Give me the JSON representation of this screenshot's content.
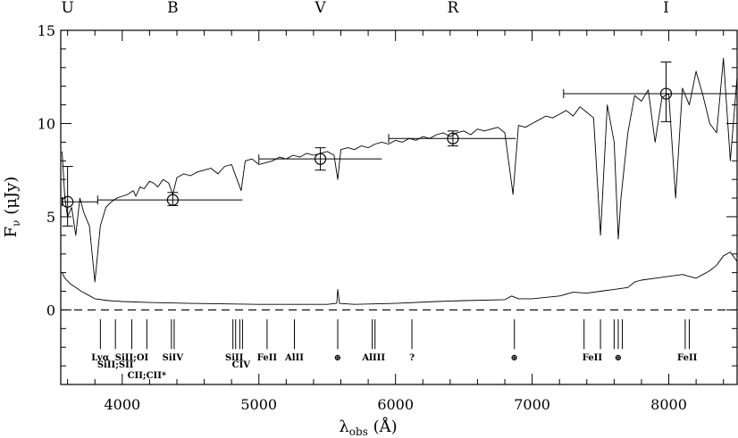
{
  "chart_data": {
    "type": "line",
    "title": "",
    "xlabel": "λobs (Å)",
    "xlabel_main": "λ",
    "xlabel_sub": "obs",
    "xlabel_unit": " (Å)",
    "ylabel": "Fν (μJy)",
    "ylabel_main": "F",
    "ylabel_sub": "ν",
    "ylabel_unit": " (μJy)",
    "xlim": [
      3550,
      8500
    ],
    "ylim": [
      -4,
      15
    ],
    "x_ticks": [
      4000,
      5000,
      6000,
      7000,
      8000
    ],
    "y_ticks": [
      0,
      5,
      10,
      15
    ],
    "grid": false,
    "zero_line": {
      "y": 0,
      "style": "dashed"
    },
    "filter_bands": [
      {
        "label": "U",
        "x": 3600
      },
      {
        "label": "B",
        "x": 4370
      },
      {
        "label": "V",
        "x": 5450
      },
      {
        "label": "R",
        "x": 6420
      },
      {
        "label": "I",
        "x": 7980
      }
    ],
    "series": [
      {
        "kind": "spectrum",
        "x": [
          3560,
          3580,
          3600,
          3630,
          3660,
          3690,
          3720,
          3760,
          3800,
          3840,
          3880,
          3920,
          3960,
          4000,
          4040,
          4080,
          4100,
          4130,
          4160,
          4200,
          4230,
          4260,
          4300,
          4340,
          4370,
          4400,
          4450,
          4500,
          4550,
          4600,
          4650,
          4700,
          4750,
          4800,
          4840,
          4870,
          4900,
          4950,
          5000,
          5050,
          5100,
          5150,
          5200,
          5250,
          5300,
          5350,
          5400,
          5450,
          5500,
          5550,
          5577,
          5600,
          5650,
          5700,
          5750,
          5800,
          5850,
          5900,
          5950,
          6000,
          6050,
          6100,
          6150,
          6200,
          6250,
          6300,
          6350,
          6400,
          6450,
          6500,
          6550,
          6600,
          6650,
          6700,
          6750,
          6800,
          6860,
          6900,
          6950,
          7000,
          7050,
          7100,
          7150,
          7200,
          7250,
          7300,
          7350,
          7400,
          7450,
          7500,
          7550,
          7600,
          7630,
          7650,
          7700,
          7750,
          7800,
          7850,
          7900,
          7950,
          8000,
          8050,
          8100,
          8150,
          8200,
          8250,
          8300,
          8350,
          8400,
          8450,
          8500
        ],
        "y": [
          8.5,
          6.0,
          5.0,
          5.5,
          4.0,
          6.0,
          5.2,
          4.5,
          1.5,
          4.5,
          5.5,
          5.8,
          6.0,
          6.1,
          6.2,
          6.4,
          6.1,
          6.6,
          6.5,
          6.9,
          6.8,
          6.6,
          7.0,
          6.8,
          6.2,
          7.1,
          7.3,
          7.2,
          7.4,
          7.5,
          7.6,
          7.3,
          7.7,
          7.8,
          7.0,
          6.4,
          8.0,
          8.1,
          7.8,
          7.9,
          8.0,
          8.2,
          8.1,
          8.3,
          8.2,
          8.4,
          8.3,
          8.4,
          8.5,
          8.3,
          7.0,
          8.6,
          8.7,
          8.6,
          8.8,
          8.7,
          8.9,
          9.0,
          8.9,
          9.1,
          9.0,
          9.2,
          9.1,
          9.3,
          9.2,
          9.4,
          9.5,
          9.3,
          9.5,
          9.6,
          9.4,
          9.7,
          9.6,
          9.7,
          9.8,
          9.5,
          6.2,
          9.9,
          9.8,
          10.0,
          10.2,
          10.4,
          10.3,
          10.5,
          10.7,
          10.4,
          10.9,
          10.6,
          10.3,
          4.0,
          11.0,
          9.0,
          3.8,
          6.0,
          9.5,
          11.5,
          11.2,
          11.8,
          9.0,
          11.4,
          11.6,
          6.0,
          11.9,
          11.0,
          12.8,
          11.5,
          10.0,
          9.5,
          13.5,
          8.0,
          12.5
        ]
      },
      {
        "kind": "error_spectrum",
        "x": [
          3560,
          3580,
          3620,
          3660,
          3700,
          3750,
          3800,
          3900,
          4000,
          4200,
          4500,
          5000,
          5500,
          5570,
          5577,
          5590,
          5700,
          6000,
          6300,
          6500,
          6800,
          6850,
          6900,
          7000,
          7200,
          7300,
          7400,
          7500,
          7600,
          7700,
          7750,
          7800,
          7900,
          8000,
          8100,
          8200,
          8250,
          8300,
          8350,
          8400,
          8450,
          8500
        ],
        "y": [
          2.0,
          1.7,
          1.4,
          1.2,
          1.0,
          0.8,
          0.6,
          0.5,
          0.45,
          0.4,
          0.35,
          0.3,
          0.3,
          0.35,
          1.1,
          0.35,
          0.3,
          0.35,
          0.45,
          0.5,
          0.55,
          0.75,
          0.6,
          0.6,
          0.75,
          0.95,
          0.9,
          1.0,
          1.1,
          1.2,
          1.5,
          1.6,
          1.7,
          1.8,
          1.9,
          1.7,
          1.9,
          2.1,
          2.4,
          2.9,
          3.1,
          2.6
        ]
      },
      {
        "kind": "photometry",
        "points": [
          {
            "band": "U",
            "x": 3600,
            "y": 5.8,
            "xerr": [
              3560,
              3820
            ],
            "yerr": [
              4.5,
              7.7
            ]
          },
          {
            "band": "B",
            "x": 4370,
            "y": 5.9,
            "xerr": [
              3820,
              4880
            ],
            "yerr": [
              5.6,
              6.3
            ]
          },
          {
            "band": "V",
            "x": 5450,
            "y": 8.1,
            "xerr": [
              5000,
              5900
            ],
            "yerr": [
              7.5,
              8.7
            ]
          },
          {
            "band": "R",
            "x": 6420,
            "y": 9.2,
            "xerr": [
              5950,
              6880
            ],
            "yerr": [
              8.8,
              9.6
            ]
          },
          {
            "band": "I",
            "x": 7980,
            "y": 11.6,
            "xerr": [
              7230,
              8500
            ],
            "yerr": [
              10.1,
              13.3
            ]
          }
        ]
      }
    ],
    "line_ids": [
      {
        "ticks": [
          3840
        ],
        "label": "Lyα",
        "row": 0
      },
      {
        "ticks": [
          3950
        ],
        "label": "SiII;SII",
        "row": 1
      },
      {
        "ticks": [
          4070
        ],
        "label": "SiII;OI",
        "row": 0
      },
      {
        "ticks": [
          4180
        ],
        "label": "CII;CII*",
        "row": 2
      },
      {
        "ticks": [
          4360,
          4380
        ],
        "label": "SiIV",
        "row": 0
      },
      {
        "ticks": [
          4810,
          4830
        ],
        "label": "SiII",
        "row": 0
      },
      {
        "ticks": [
          4860,
          4880
        ],
        "label": "CIV",
        "row": 1
      },
      {
        "ticks": [
          5060
        ],
        "label": "FeII",
        "row": 0
      },
      {
        "ticks": [
          5260
        ],
        "label": "AlII",
        "row": 0
      },
      {
        "ticks": [
          5577
        ],
        "label": "⊕",
        "row": 0
      },
      {
        "ticks": [
          5830,
          5850
        ],
        "label": "AlIII",
        "row": 0
      },
      {
        "ticks": [
          6120
        ],
        "label": "?",
        "row": 0
      },
      {
        "ticks": [
          6870
        ],
        "label": "⊕",
        "row": 0
      },
      {
        "ticks": [
          7380,
          7500
        ],
        "label": "FeII",
        "row": 0
      },
      {
        "ticks": [
          7600,
          7630,
          7660
        ],
        "label": "⊕",
        "row": 0
      },
      {
        "ticks": [
          8120,
          8150
        ],
        "label": "FeII",
        "row": 0
      }
    ]
  }
}
